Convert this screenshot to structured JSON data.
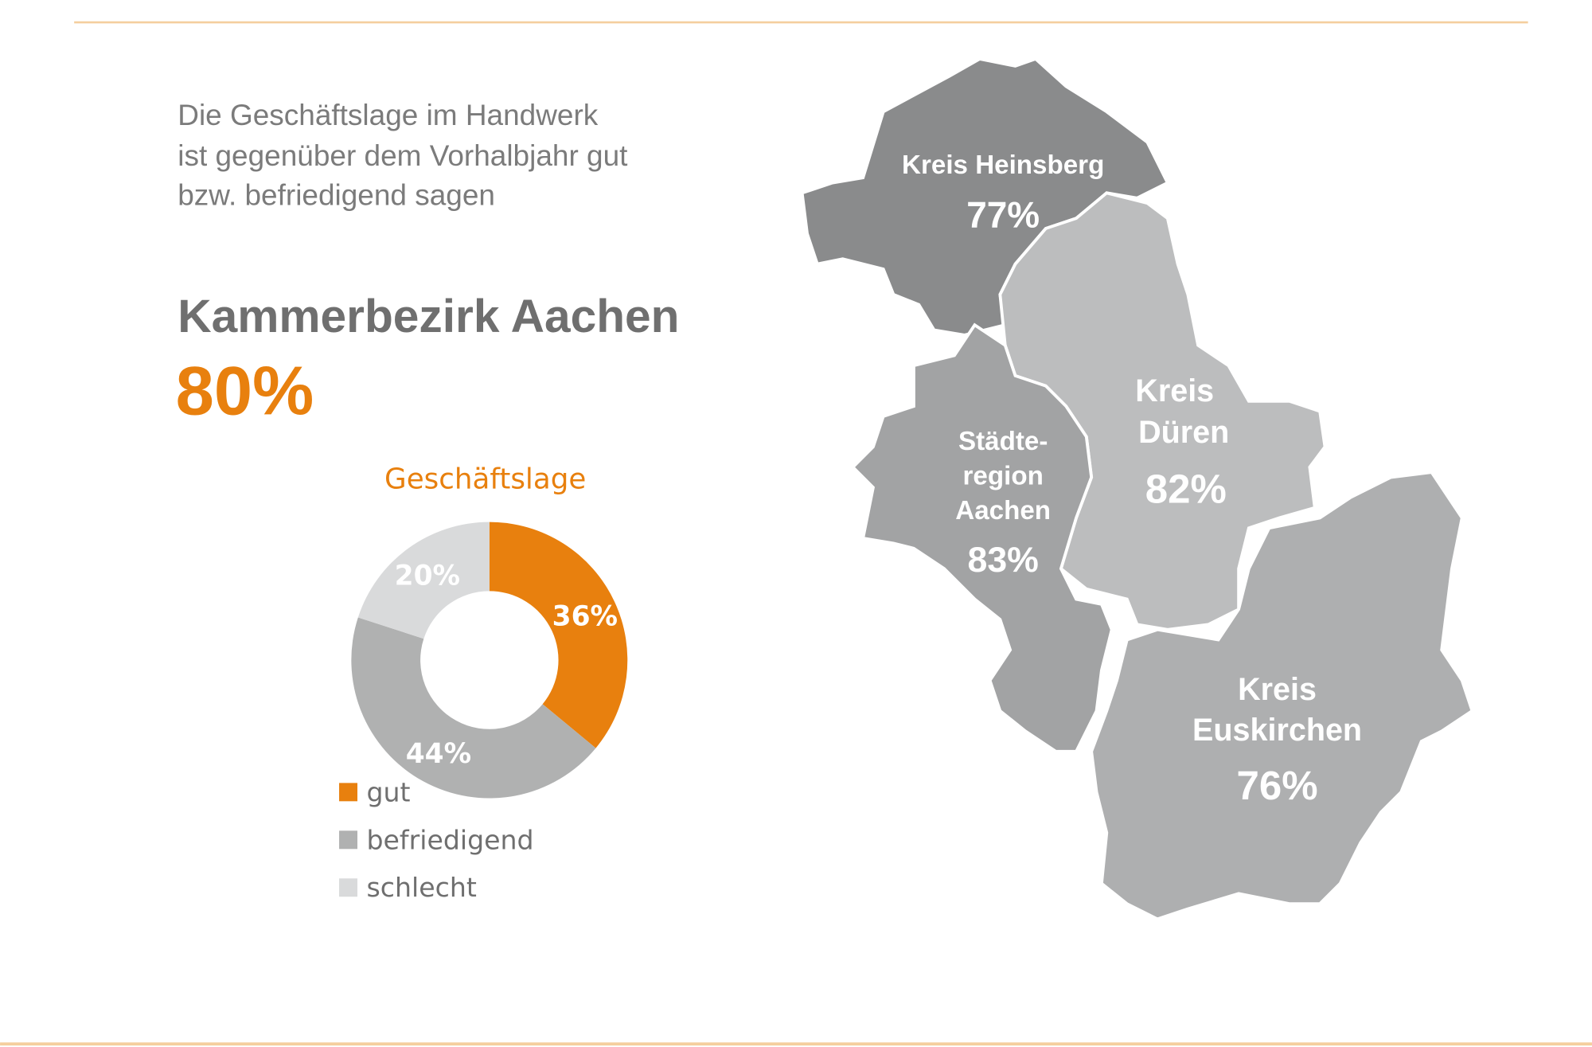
{
  "intro": {
    "lines": [
      "Die Geschäftslage im Handwerk",
      "ist gegenüber dem Vorhalbjahr gut",
      "bzw. befriedigend sagen"
    ]
  },
  "headline": {
    "title": "Kammerbezirk Aachen",
    "value": "80%"
  },
  "chart_data": {
    "type": "pie",
    "donut": true,
    "title": "Geschäftslage",
    "categories": [
      "gut",
      "befriedigend",
      "schlecht"
    ],
    "values": [
      36,
      44,
      20
    ],
    "value_labels": [
      "36%",
      "44%",
      "20%"
    ],
    "colors": [
      "#e8800e",
      "#b0b1b1",
      "#d9dadb"
    ]
  },
  "map": {
    "regions": [
      {
        "name_lines": [
          "Kreis Heinsberg"
        ],
        "value": "77%"
      },
      {
        "name_lines": [
          "Kreis",
          "Düren"
        ],
        "value": "82%"
      },
      {
        "name_lines": [
          "Städte-",
          "region",
          "Aachen"
        ],
        "value": "83%"
      },
      {
        "name_lines": [
          "Kreis",
          "Euskirchen"
        ],
        "value": "76%"
      }
    ]
  }
}
